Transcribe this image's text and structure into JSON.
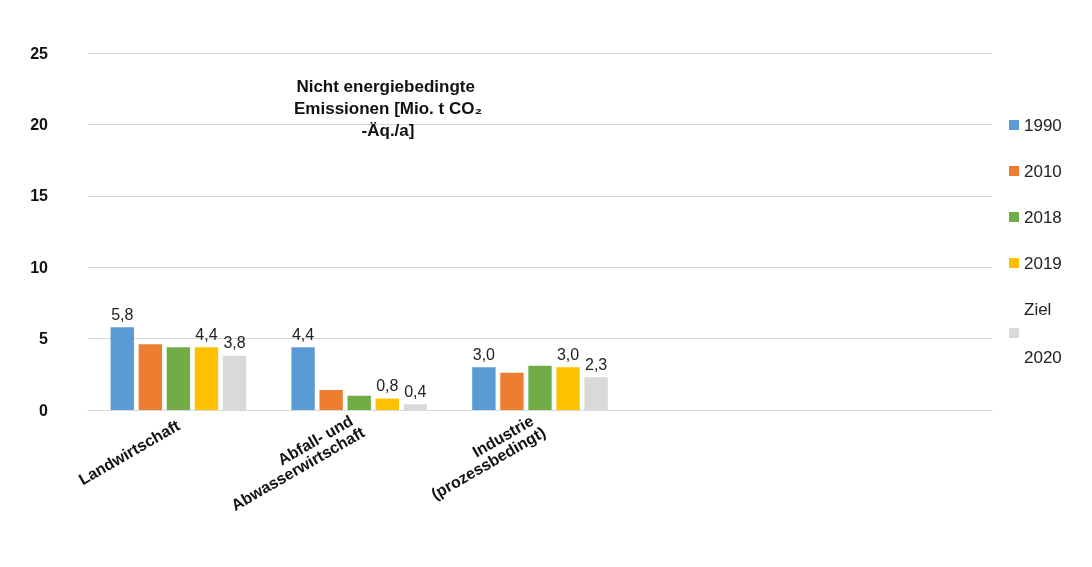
{
  "chart_data": {
    "type": "bar",
    "title": "Nicht energiebedingte Emissionen [Mio. t CO₂-Äq./a]",
    "categories": [
      "Landwirtschaft",
      "Abfall- und Abwasserwirtschaft",
      "Industrie (prozessbedingt)",
      null,
      null
    ],
    "series": [
      {
        "name": "1990",
        "color": "#5b9bd5",
        "values": [
          5.8,
          4.4,
          3.0,
          null,
          null
        ],
        "value_labels": [
          "5,8",
          "4,4",
          "3,0",
          null,
          null
        ]
      },
      {
        "name": "2010",
        "color": "#ed7d31",
        "values": [
          4.6,
          1.4,
          2.6,
          null,
          null
        ]
      },
      {
        "name": "2018",
        "color": "#70ad47",
        "values": [
          4.4,
          1.0,
          3.1,
          null,
          null
        ]
      },
      {
        "name": "2019",
        "color": "#ffc000",
        "values": [
          4.4,
          0.8,
          3.0,
          null,
          null
        ],
        "value_labels": [
          "4,4",
          "0,8",
          "3,0",
          null,
          null
        ]
      },
      {
        "name": "Ziel 2020",
        "color": "#d9d9d9",
        "values": [
          3.8,
          0.4,
          2.3,
          null,
          null
        ],
        "value_labels": [
          "3,8",
          "0,4",
          "2,3",
          null,
          null
        ]
      }
    ],
    "ylim": [
      0,
      25
    ],
    "yticks": [
      0,
      5,
      10,
      15,
      20,
      25
    ],
    "grid": "y",
    "legend": "right"
  }
}
